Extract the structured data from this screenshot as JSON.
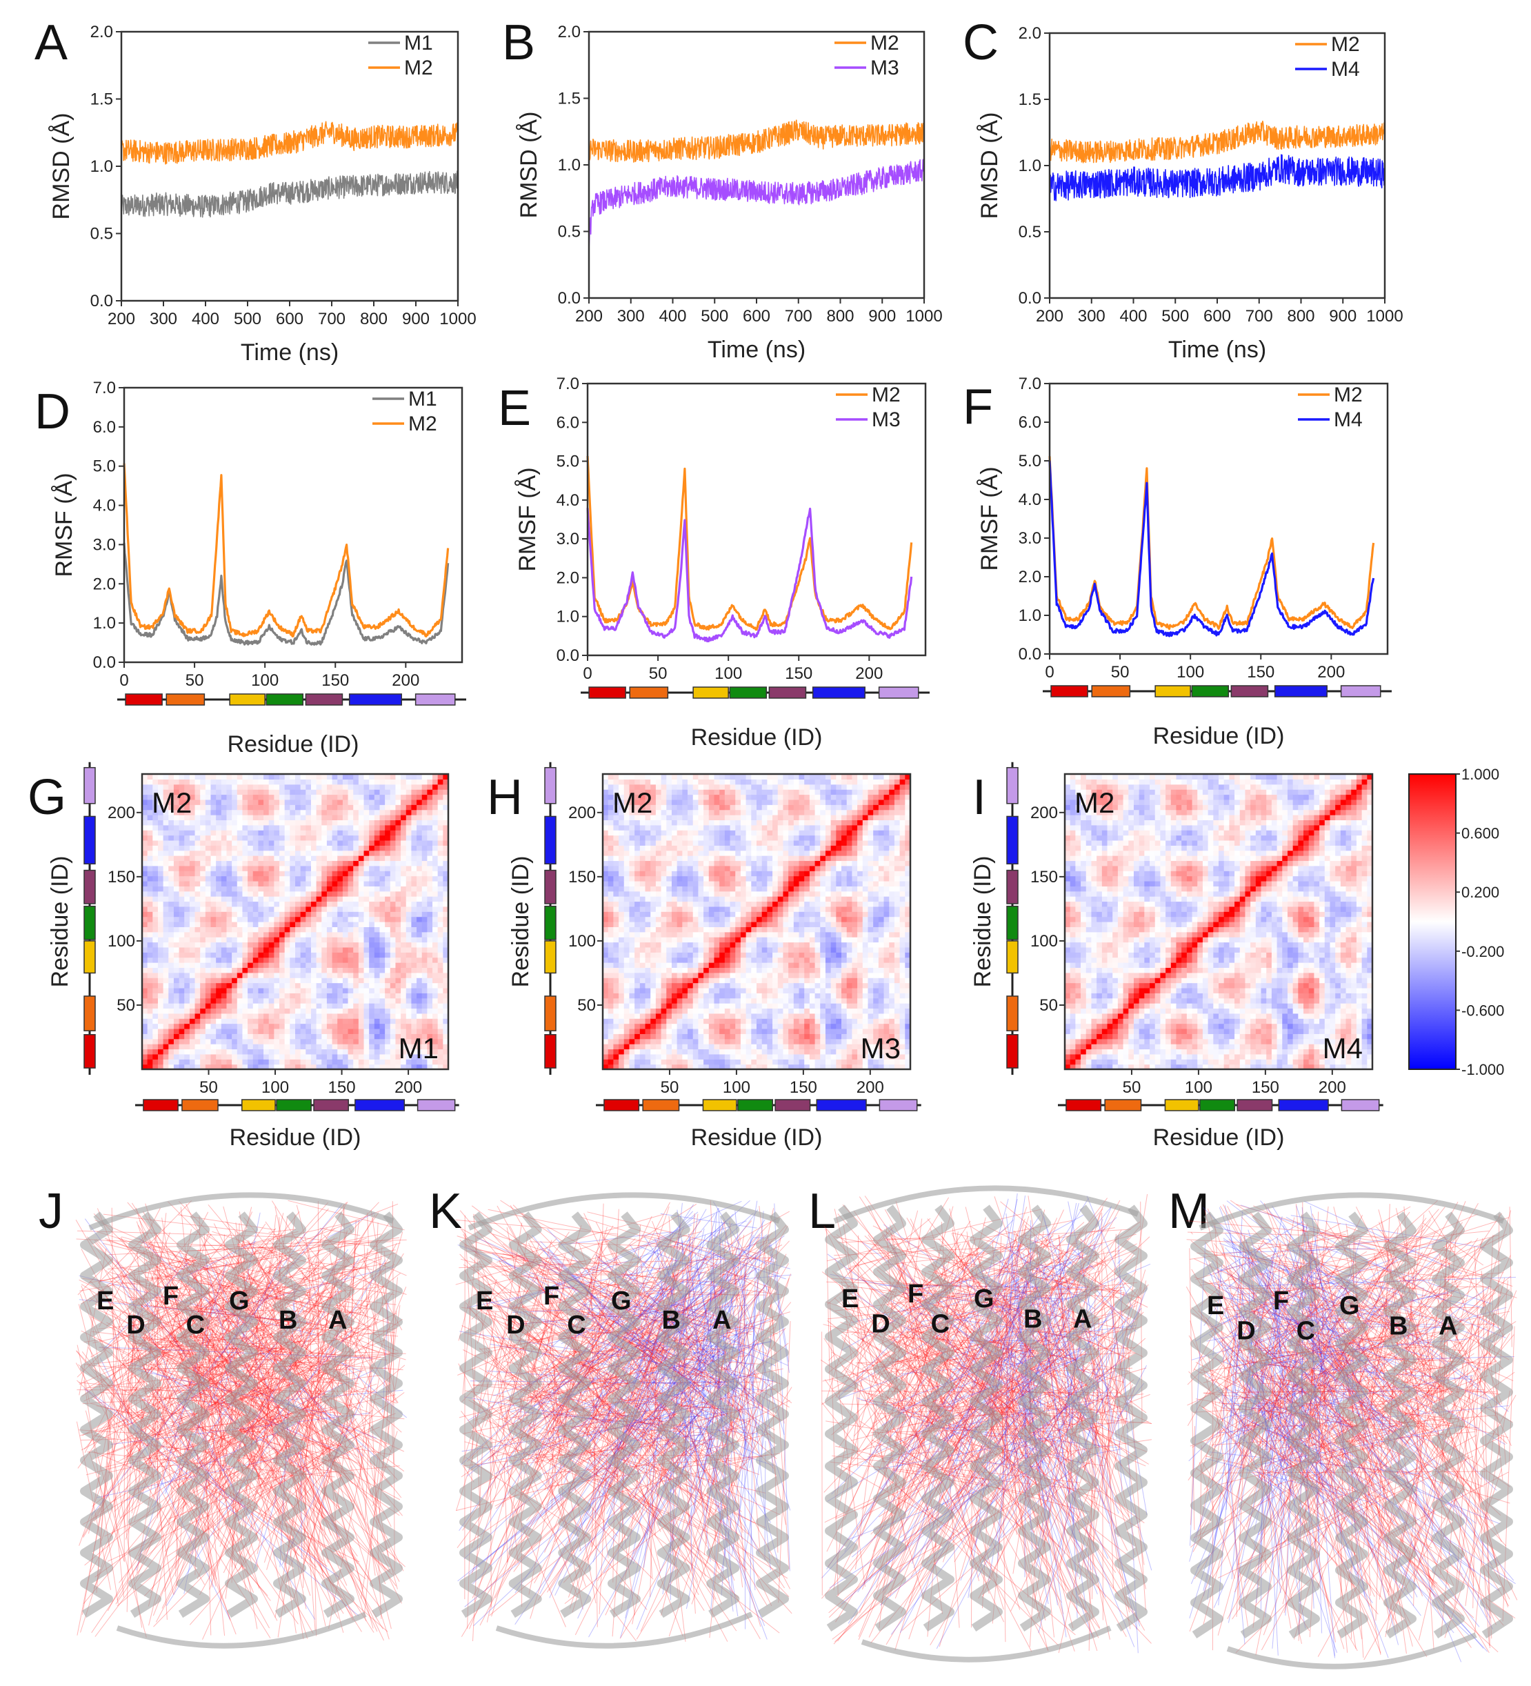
{
  "colors": {
    "M1": "#808080",
    "M2": "#ff8c1a",
    "M3": "#a64dff",
    "M4": "#1a1aff",
    "segments": [
      "#e00000",
      "#ee6a10",
      "#f2c200",
      "#108a10",
      "#8a3a6a",
      "#1a1aee",
      "#c49ae8"
    ]
  },
  "chart_data": [
    {
      "panel": "A",
      "type": "line",
      "xlabel": "Time (ns)",
      "ylabel": "RMSD (Å)",
      "xlim": [
        200,
        1000
      ],
      "ylim": [
        0.0,
        2.0
      ],
      "xticks": [
        "200",
        "300",
        "400",
        "500",
        "600",
        "700",
        "800",
        "900",
        "1000"
      ],
      "yticks": [
        "0.0",
        "0.5",
        "1.0",
        "1.5",
        "2.0"
      ],
      "series": [
        {
          "name": "M1",
          "x": [
            200,
            300,
            400,
            500,
            550,
            600,
            700,
            800,
            900,
            1000
          ],
          "values": [
            0.7,
            0.72,
            0.7,
            0.74,
            0.8,
            0.8,
            0.84,
            0.86,
            0.88,
            0.88
          ]
        },
        {
          "name": "M2",
          "x": [
            200,
            300,
            400,
            500,
            600,
            700,
            750,
            800,
            900,
            1000
          ],
          "values": [
            1.12,
            1.1,
            1.12,
            1.13,
            1.17,
            1.26,
            1.2,
            1.22,
            1.22,
            1.24
          ]
        }
      ]
    },
    {
      "panel": "B",
      "type": "line",
      "xlabel": "Time (ns)",
      "ylabel": "RMSD (Å)",
      "xlim": [
        200,
        1000
      ],
      "ylim": [
        0.0,
        2.0
      ],
      "xticks": [
        "200",
        "300",
        "400",
        "500",
        "600",
        "700",
        "800",
        "900",
        "1000"
      ],
      "yticks": [
        "0.0",
        "0.5",
        "1.0",
        "1.5",
        "2.0"
      ],
      "series": [
        {
          "name": "M2",
          "x": [
            200,
            300,
            400,
            500,
            600,
            700,
            750,
            800,
            900,
            1000
          ],
          "values": [
            1.12,
            1.1,
            1.12,
            1.13,
            1.17,
            1.26,
            1.2,
            1.22,
            1.22,
            1.24
          ]
        },
        {
          "name": "M3",
          "x": [
            200,
            210,
            300,
            400,
            500,
            600,
            700,
            800,
            900,
            1000
          ],
          "values": [
            0.45,
            0.7,
            0.78,
            0.84,
            0.82,
            0.8,
            0.78,
            0.82,
            0.9,
            0.96
          ]
        }
      ]
    },
    {
      "panel": "C",
      "type": "line",
      "xlabel": "Time (ns)",
      "ylabel": "RMSD (Å)",
      "xlim": [
        200,
        1000
      ],
      "ylim": [
        0.0,
        2.0
      ],
      "xticks": [
        "200",
        "300",
        "400",
        "500",
        "600",
        "700",
        "800",
        "900",
        "1000"
      ],
      "yticks": [
        "0.0",
        "0.5",
        "1.0",
        "1.5",
        "2.0"
      ],
      "series": [
        {
          "name": "M2",
          "x": [
            200,
            300,
            400,
            500,
            600,
            700,
            750,
            800,
            900,
            1000
          ],
          "values": [
            1.12,
            1.1,
            1.12,
            1.13,
            1.17,
            1.26,
            1.2,
            1.22,
            1.22,
            1.24
          ]
        },
        {
          "name": "M4",
          "x": [
            200,
            300,
            400,
            500,
            600,
            700,
            750,
            800,
            900,
            1000
          ],
          "values": [
            0.84,
            0.86,
            0.88,
            0.86,
            0.88,
            0.92,
            0.98,
            0.95,
            0.96,
            0.94
          ]
        }
      ]
    },
    {
      "panel": "D",
      "type": "line",
      "xlabel": "Residue (ID)",
      "ylabel": "RMSF (Å)",
      "xlim": [
        0,
        240
      ],
      "ylim": [
        0.0,
        7.0
      ],
      "xticks": [
        "0",
        "50",
        "100",
        "150",
        "200"
      ],
      "yticks": [
        "0.0",
        "1.0",
        "2.0",
        "3.0",
        "4.0",
        "5.0",
        "6.0",
        "7.0"
      ],
      "series": [
        {
          "name": "M1",
          "x": [
            0,
            5,
            12,
            20,
            28,
            32,
            36,
            45,
            55,
            62,
            66,
            69,
            72,
            76,
            85,
            95,
            103,
            110,
            120,
            126,
            130,
            140,
            150,
            155,
            158,
            162,
            170,
            180,
            195,
            205,
            215,
            225,
            230
          ],
          "values": [
            3.0,
            1.0,
            0.7,
            0.7,
            1.2,
            1.8,
            1.1,
            0.6,
            0.6,
            0.7,
            1.2,
            2.2,
            1.0,
            0.6,
            0.5,
            0.5,
            0.9,
            0.6,
            0.5,
            0.8,
            0.5,
            0.5,
            1.4,
            2.0,
            2.6,
            1.2,
            0.6,
            0.6,
            0.9,
            0.6,
            0.5,
            0.8,
            2.5
          ]
        },
        {
          "name": "M2",
          "x": [
            0,
            5,
            12,
            20,
            28,
            32,
            36,
            45,
            55,
            62,
            66,
            69,
            72,
            76,
            85,
            95,
            103,
            110,
            120,
            126,
            130,
            140,
            150,
            155,
            158,
            162,
            170,
            180,
            195,
            205,
            215,
            225,
            230
          ],
          "values": [
            5.1,
            1.5,
            0.9,
            0.9,
            1.3,
            1.9,
            1.2,
            0.8,
            0.8,
            1.2,
            3.2,
            4.8,
            1.5,
            0.8,
            0.7,
            0.8,
            1.3,
            0.9,
            0.7,
            1.2,
            0.8,
            0.8,
            1.9,
            2.5,
            3.0,
            1.5,
            0.9,
            0.9,
            1.3,
            0.9,
            0.7,
            1.1,
            2.9
          ]
        }
      ]
    },
    {
      "panel": "E",
      "type": "line",
      "xlabel": "Residue (ID)",
      "ylabel": "RMSF (Å)",
      "xlim": [
        0,
        240
      ],
      "ylim": [
        0.0,
        7.0
      ],
      "xticks": [
        "0",
        "50",
        "100",
        "150",
        "200"
      ],
      "yticks": [
        "0.0",
        "1.0",
        "2.0",
        "3.0",
        "4.0",
        "5.0",
        "6.0",
        "7.0"
      ],
      "series": [
        {
          "name": "M2",
          "x": [
            0,
            5,
            12,
            20,
            28,
            32,
            36,
            45,
            55,
            62,
            66,
            69,
            72,
            76,
            85,
            95,
            103,
            110,
            120,
            126,
            130,
            140,
            150,
            155,
            158,
            162,
            170,
            180,
            195,
            205,
            215,
            225,
            230
          ],
          "values": [
            5.1,
            1.5,
            0.9,
            0.9,
            1.3,
            1.9,
            1.2,
            0.8,
            0.8,
            1.2,
            3.2,
            4.8,
            1.5,
            0.8,
            0.7,
            0.8,
            1.3,
            0.9,
            0.7,
            1.2,
            0.8,
            0.8,
            1.9,
            2.5,
            3.0,
            1.5,
            0.9,
            0.9,
            1.3,
            0.9,
            0.7,
            1.1,
            2.9
          ]
        },
        {
          "name": "M3",
          "x": [
            0,
            5,
            12,
            20,
            28,
            32,
            36,
            45,
            55,
            62,
            66,
            69,
            72,
            76,
            85,
            95,
            103,
            110,
            120,
            126,
            130,
            140,
            150,
            155,
            158,
            162,
            170,
            180,
            195,
            205,
            215,
            225,
            230
          ],
          "values": [
            3.8,
            1.2,
            0.7,
            0.7,
            1.4,
            2.1,
            1.3,
            0.6,
            0.5,
            0.7,
            2.0,
            3.5,
            1.0,
            0.5,
            0.4,
            0.5,
            1.0,
            0.6,
            0.5,
            1.0,
            0.6,
            0.6,
            2.2,
            3.2,
            3.8,
            1.6,
            0.7,
            0.6,
            0.9,
            0.6,
            0.5,
            0.7,
            2.0
          ]
        }
      ]
    },
    {
      "panel": "F",
      "type": "line",
      "xlabel": "Residue (ID)",
      "ylabel": "RMSF (Å)",
      "xlim": [
        0,
        240
      ],
      "ylim": [
        0.0,
        7.0
      ],
      "xticks": [
        "0",
        "50",
        "100",
        "150",
        "200"
      ],
      "yticks": [
        "0.0",
        "1.0",
        "2.0",
        "3.0",
        "4.0",
        "5.0",
        "6.0",
        "7.0"
      ],
      "series": [
        {
          "name": "M2",
          "x": [
            0,
            5,
            12,
            20,
            28,
            32,
            36,
            45,
            55,
            62,
            66,
            69,
            72,
            76,
            85,
            95,
            103,
            110,
            120,
            126,
            130,
            140,
            150,
            155,
            158,
            162,
            170,
            180,
            195,
            205,
            215,
            225,
            230
          ],
          "values": [
            5.1,
            1.5,
            0.9,
            0.9,
            1.3,
            1.9,
            1.2,
            0.8,
            0.8,
            1.2,
            3.2,
            4.8,
            1.5,
            0.8,
            0.7,
            0.8,
            1.3,
            0.9,
            0.7,
            1.2,
            0.8,
            0.8,
            1.9,
            2.5,
            3.0,
            1.5,
            0.9,
            0.9,
            1.3,
            0.9,
            0.7,
            1.1,
            2.9
          ]
        },
        {
          "name": "M4",
          "x": [
            0,
            5,
            12,
            20,
            28,
            32,
            36,
            45,
            55,
            62,
            66,
            69,
            72,
            76,
            85,
            95,
            103,
            110,
            120,
            126,
            130,
            140,
            150,
            155,
            158,
            162,
            170,
            180,
            195,
            205,
            215,
            225,
            230
          ],
          "values": [
            5.0,
            1.3,
            0.7,
            0.7,
            1.2,
            1.8,
            1.1,
            0.6,
            0.6,
            1.0,
            3.0,
            4.4,
            1.2,
            0.6,
            0.5,
            0.6,
            1.0,
            0.7,
            0.5,
            1.0,
            0.6,
            0.6,
            1.6,
            2.2,
            2.6,
            1.2,
            0.7,
            0.7,
            1.1,
            0.7,
            0.5,
            0.8,
            2.0
          ]
        }
      ]
    },
    {
      "panel": "G",
      "type": "heatmap",
      "xlabel": "Residue (ID)",
      "ylabel": "Residue (ID)",
      "xlim": [
        0,
        230
      ],
      "ylim": [
        0,
        230
      ],
      "xticks": [
        "50",
        "100",
        "150",
        "200"
      ],
      "yticks": [
        "50",
        "100",
        "150",
        "200"
      ],
      "upper_label": "M2",
      "lower_label": "M1"
    },
    {
      "panel": "H",
      "type": "heatmap",
      "xlabel": "Residue (ID)",
      "ylabel": "Residue (ID)",
      "xlim": [
        0,
        230
      ],
      "ylim": [
        0,
        230
      ],
      "xticks": [
        "50",
        "100",
        "150",
        "200"
      ],
      "yticks": [
        "50",
        "100",
        "150",
        "200"
      ],
      "upper_label": "M2",
      "lower_label": "M3"
    },
    {
      "panel": "I",
      "type": "heatmap",
      "xlabel": "Residue (ID)",
      "ylabel": "Residue (ID)",
      "xlim": [
        0,
        230
      ],
      "ylim": [
        0,
        230
      ],
      "xticks": [
        "50",
        "100",
        "150",
        "200"
      ],
      "yticks": [
        "50",
        "100",
        "150",
        "200"
      ],
      "upper_label": "M2",
      "lower_label": "M4"
    }
  ],
  "segments": [
    [
      1,
      27
    ],
    [
      30,
      57
    ],
    [
      75,
      100
    ],
    [
      101,
      127
    ],
    [
      129,
      155
    ],
    [
      160,
      197
    ],
    [
      207,
      235
    ]
  ],
  "colorbar": {
    "ticks": [
      "1.000",
      "0.600",
      "0.200",
      "-0.200",
      "-0.600",
      "-1.000"
    ],
    "range": [
      -1.0,
      1.0
    ]
  },
  "structures": [
    {
      "panel": "J",
      "helices": [
        "E",
        "F",
        "G",
        "D",
        "C",
        "B",
        "A"
      ],
      "blue_fraction": 0.06
    },
    {
      "panel": "K",
      "helices": [
        "E",
        "F",
        "G",
        "D",
        "C",
        "B",
        "A"
      ],
      "blue_fraction": 0.3
    },
    {
      "panel": "L",
      "helices": [
        "E",
        "F",
        "G",
        "D",
        "C",
        "B",
        "A"
      ],
      "blue_fraction": 0.22
    },
    {
      "panel": "M",
      "helices": [
        "E",
        "F",
        "G",
        "D",
        "C",
        "B",
        "A"
      ],
      "blue_fraction": 0.25
    }
  ]
}
